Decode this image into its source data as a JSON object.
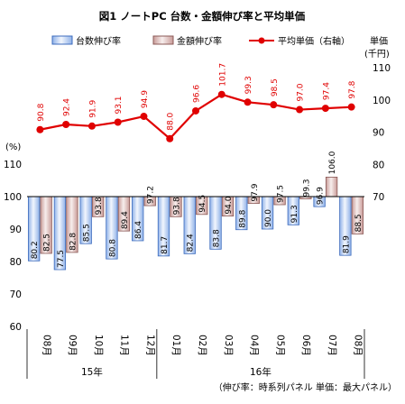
{
  "chart_data": {
    "type": "bar",
    "title": "図1 ノートPC 台数・金額伸び率と平均単価",
    "categories": [
      "08月",
      "09月",
      "10月",
      "11月",
      "12月",
      "01月",
      "02月",
      "03月",
      "04月",
      "05月",
      "06月",
      "07月",
      "08月"
    ],
    "groups": [
      {
        "label": "15年",
        "start": 0,
        "end": 4
      },
      {
        "label": "16年",
        "start": 5,
        "end": 12
      }
    ],
    "left_axis": {
      "unit": "(%)",
      "ticks": [
        110,
        100,
        90,
        80,
        70,
        60
      ],
      "ylim": [
        60,
        110
      ],
      "baseline": 100
    },
    "right_axis": {
      "unit_lines": [
        "単価",
        "(千円)"
      ],
      "ticks": [
        110,
        100,
        90,
        80,
        70
      ],
      "ylim": [
        70,
        110
      ]
    },
    "series": [
      {
        "name": "台数伸び率",
        "kind": "bar",
        "color": "#5b87d1",
        "values": [
          80.2,
          77.5,
          85.5,
          80.8,
          86.4,
          81.7,
          82.4,
          83.8,
          89.8,
          90.0,
          91.3,
          96.9,
          81.9
        ]
      },
      {
        "name": "金額伸び率",
        "kind": "bar",
        "color": "#b07a78",
        "values": [
          82.5,
          82.8,
          93.8,
          89.4,
          97.2,
          93.8,
          94.5,
          94.0,
          97.9,
          97.5,
          99.3,
          106.0,
          88.5
        ]
      },
      {
        "name": "平均単価（右軸）",
        "kind": "line",
        "color": "#e00000",
        "values": [
          90.8,
          92.4,
          91.9,
          93.1,
          94.9,
          88.0,
          96.6,
          101.7,
          99.3,
          98.5,
          97.0,
          97.4,
          97.8
        ]
      }
    ],
    "footnote": "（伸び率：時系列パネル 単価：最大パネル）"
  }
}
